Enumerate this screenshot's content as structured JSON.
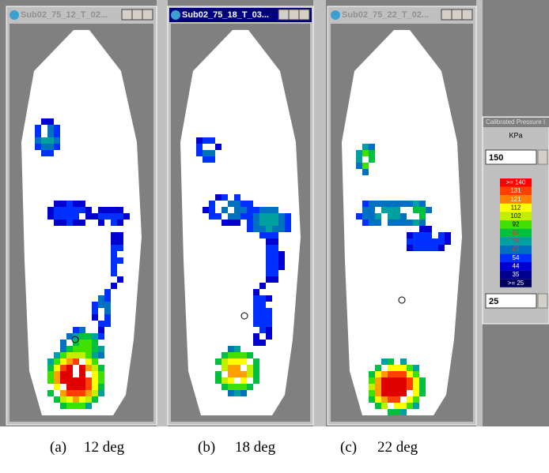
{
  "windows": [
    {
      "title": "Sub02_75_12_T_02..."
    },
    {
      "title": "Sub02_75_18_T_03..."
    },
    {
      "title": "Sub02_75_22_T_02..."
    }
  ],
  "legend_panel": {
    "title": "Calibrated Pressure I",
    "unit": "KPa",
    "max_input": "150",
    "scale_labels": [
      ">= 140",
      "131",
      "121",
      "112",
      "102",
      "92",
      "83",
      "73",
      "63",
      "54",
      "44",
      "35",
      ">= 25"
    ],
    "min_input": "25"
  },
  "captions": [
    {
      "label": "(a)",
      "text": "12 deg"
    },
    {
      "label": "(b)",
      "text": "18 deg"
    },
    {
      "label": "(c)",
      "text": "22 deg"
    }
  ]
}
